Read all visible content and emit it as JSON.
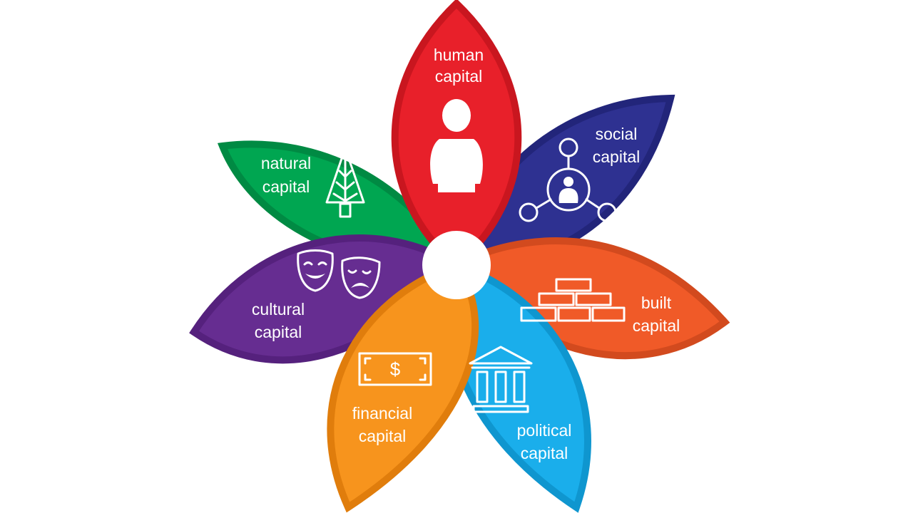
{
  "petals": [
    {
      "id": "human",
      "line1": "human",
      "line2": "capital",
      "color": "#e8202a",
      "edge": "#c9161f",
      "icon": "person-icon"
    },
    {
      "id": "social",
      "line1": "social",
      "line2": "capital",
      "color": "#2e3191",
      "edge": "#22257a",
      "icon": "network-icon"
    },
    {
      "id": "built",
      "line1": "built",
      "line2": "capital",
      "color": "#f05a28",
      "edge": "#d24a1e",
      "icon": "bricks-icon"
    },
    {
      "id": "political",
      "line1": "political",
      "line2": "capital",
      "color": "#1aaeeb",
      "edge": "#0f96cf",
      "icon": "government-building-icon"
    },
    {
      "id": "financial",
      "line1": "financial",
      "line2": "capital",
      "color": "#f7941d",
      "edge": "#e07d0c",
      "icon": "dollar-bill-icon"
    },
    {
      "id": "cultural",
      "line1": "cultural",
      "line2": "capital",
      "color": "#662d91",
      "edge": "#55217d",
      "icon": "theater-masks-icon"
    },
    {
      "id": "natural",
      "line1": "natural",
      "line2": "capital",
      "color": "#00a651",
      "edge": "#008a43",
      "icon": "tree-icon"
    }
  ],
  "bill_symbol": "$",
  "center_color": "#ffffff"
}
